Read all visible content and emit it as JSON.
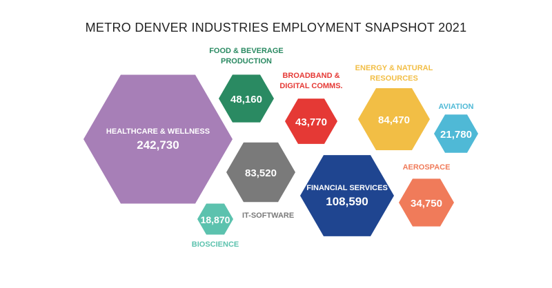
{
  "title": "METRO DENVER INDUSTRIES EMPLOYMENT SNAPSHOT 2021",
  "chart_data": {
    "type": "hexagon-bubble",
    "title": "METRO DENVER INDUSTRIES EMPLOYMENT SNAPSHOT 2021",
    "unit": "employees",
    "industries": [
      {
        "id": "healthcare",
        "name": "HEALTHCARE & WELLNESS",
        "value": 242730,
        "display": "242,730",
        "color": "#A77FB7",
        "text_color": "#ffffff"
      },
      {
        "id": "food",
        "name": "FOOD & BEVERAGE PRODUCTION",
        "value": 48160,
        "display": "48,160",
        "color": "#2A8A62",
        "text_color": "#ffffff"
      },
      {
        "id": "broadband",
        "name": "BROADBAND & DIGITAL COMMS.",
        "value": 43770,
        "display": "43,770",
        "color": "#E53935",
        "text_color": "#ffffff"
      },
      {
        "id": "it",
        "name": "IT-SOFTWARE",
        "value": 83520,
        "display": "83,520",
        "color": "#7A7A7A",
        "text_color": "#ffffff"
      },
      {
        "id": "financial",
        "name": "FINANCIAL SERVICES",
        "value": 108590,
        "display": "108,590",
        "color": "#1F4590",
        "text_color": "#ffffff"
      },
      {
        "id": "energy",
        "name": "ENERGY & NATURAL RESOURCES",
        "value": 84470,
        "display": "84,470",
        "color": "#F2BE45",
        "text_color": "#ffffff"
      },
      {
        "id": "aviation",
        "name": "AVIATION",
        "value": 21780,
        "display": "21,780",
        "color": "#4FB9D6",
        "text_color": "#ffffff"
      },
      {
        "id": "aerospace",
        "name": "AEROSPACE",
        "value": 34750,
        "display": "34,750",
        "color": "#F07B5A",
        "text_color": "#ffffff"
      },
      {
        "id": "bioscience",
        "name": "BIOSCIENCE",
        "value": 18870,
        "display": "18,870",
        "color": "#5CC2AE",
        "text_color": "#ffffff"
      }
    ]
  }
}
